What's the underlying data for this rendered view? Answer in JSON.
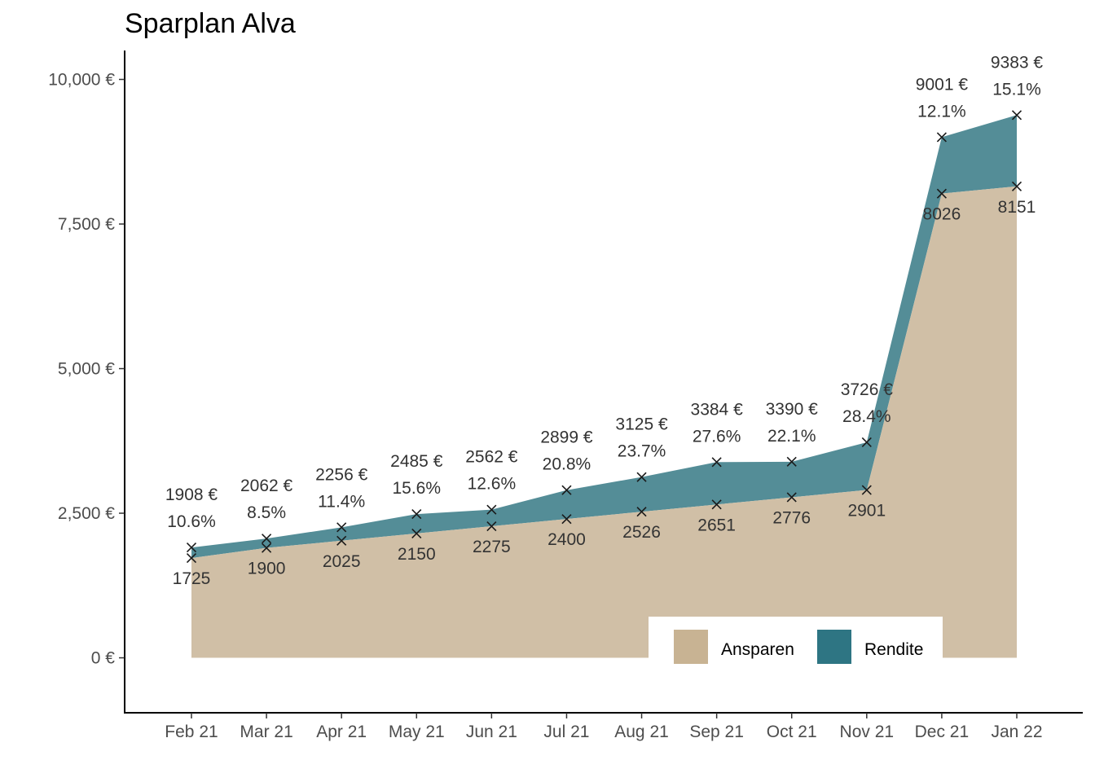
{
  "chart_data": {
    "type": "area",
    "title": "Sparplan Alva",
    "xlabel": "",
    "ylabel": "",
    "categories": [
      "Feb 21",
      "Mar 21",
      "Apr 21",
      "May 21",
      "Jun 21",
      "Jul 21",
      "Aug 21",
      "Sep 21",
      "Oct 21",
      "Nov 21",
      "Dec 21",
      "Jan 22"
    ],
    "ylim": [
      -950,
      10500
    ],
    "y_ticks": [
      {
        "value": 0,
        "label": "0 €"
      },
      {
        "value": 2500,
        "label": "2,500 €"
      },
      {
        "value": 5000,
        "label": "5,000 €"
      },
      {
        "value": 7500,
        "label": "7,500 €"
      },
      {
        "value": 10000,
        "label": "10,000 €"
      }
    ],
    "series": [
      {
        "name": "Ansparen",
        "color": "#d0bfa6",
        "legend_color": "#c8b393",
        "values": [
          1725,
          1900,
          2025,
          2150,
          2275,
          2400,
          2526,
          2651,
          2776,
          2901,
          8026,
          8151
        ],
        "labels": [
          "1725",
          "1900",
          "2025",
          "2150",
          "2275",
          "2400",
          "2526",
          "2651",
          "2776",
          "2901",
          "8026",
          "8151"
        ]
      },
      {
        "name": "Rendite",
        "color": "#548d97",
        "legend_color": "#2e7583",
        "values": [
          1908,
          2062,
          2256,
          2485,
          2562,
          2899,
          3125,
          3384,
          3390,
          3726,
          9001,
          9383
        ],
        "labels": [
          "1908 €",
          "2062 €",
          "2256 €",
          "2485 €",
          "2562 €",
          "2899 €",
          "3125 €",
          "3384 €",
          "3390 €",
          "3726 €",
          "9001 €",
          "9383 €"
        ],
        "pct_labels": [
          "10.6%",
          "8.5%",
          "11.4%",
          "15.6%",
          "12.6%",
          "20.8%",
          "23.7%",
          "27.6%",
          "22.1%",
          "28.4%",
          "12.1%",
          "15.1%"
        ]
      }
    ],
    "legend": {
      "position": "bottom-right",
      "entries": [
        "Ansparen",
        "Rendite"
      ]
    },
    "grid": false,
    "marker": "×"
  }
}
